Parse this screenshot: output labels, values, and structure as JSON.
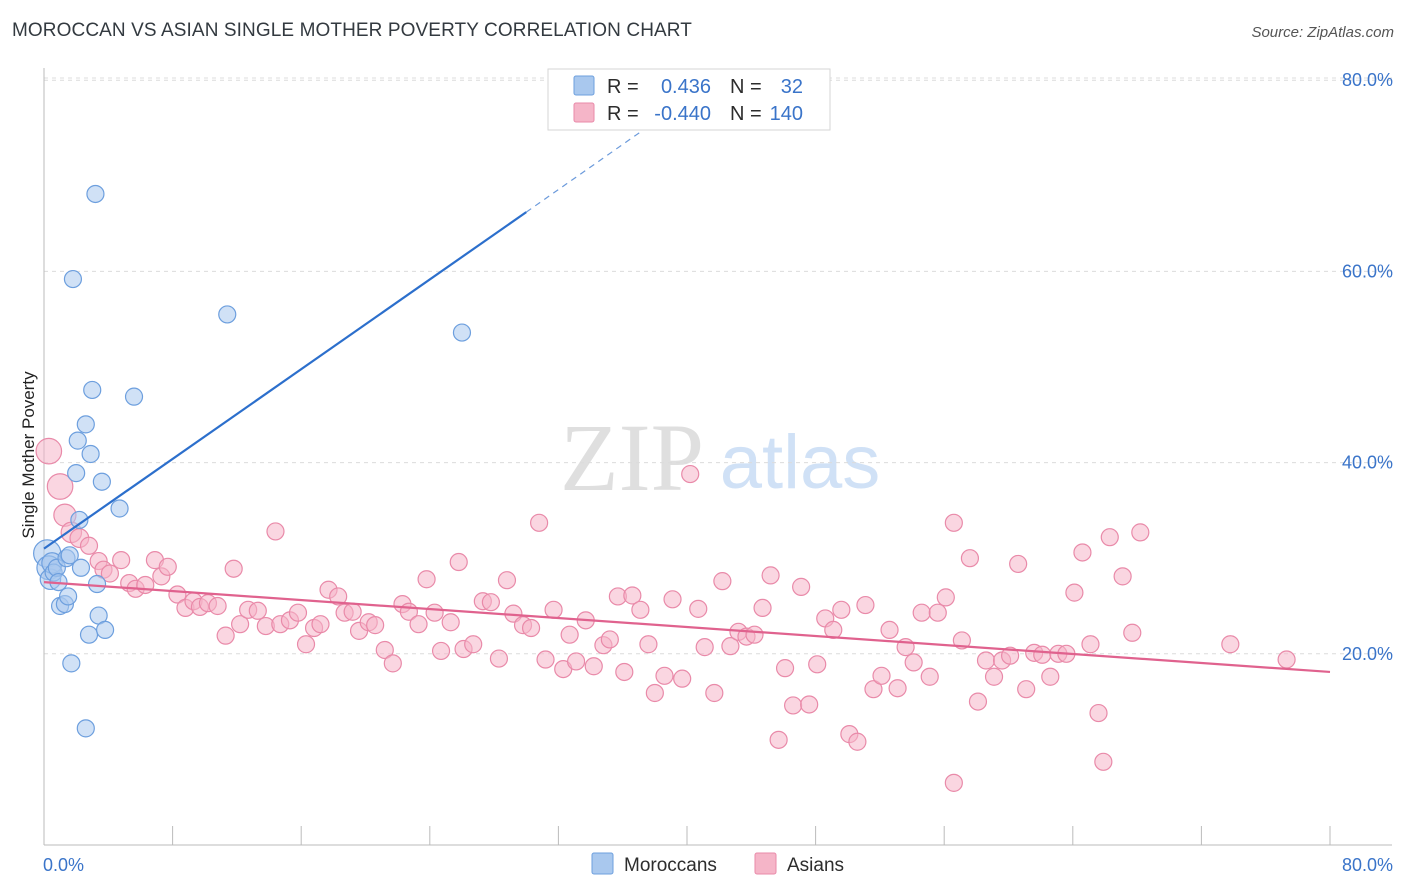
{
  "header": {
    "title": "MOROCCAN VS ASIAN SINGLE MOTHER POVERTY CORRELATION CHART",
    "source": "Source: ZipAtlas.com"
  },
  "watermark": {
    "zip": "ZIP",
    "atlas": "atlas"
  },
  "stats_box": {
    "rows": [
      {
        "r_label": "R =",
        "r_value": "0.436",
        "n_label": "N =",
        "n_value": "32",
        "color": "#a9c8ee"
      },
      {
        "r_label": "R =",
        "r_value": "-0.440",
        "n_label": "N =",
        "n_value": "140",
        "color": "#f5b5c8"
      }
    ]
  },
  "colors": {
    "moroccans_fill": "#a9c8ee",
    "moroccans_stroke": "#6d9fde",
    "moroccans_line": "#2c6fcc",
    "asians_fill": "#f5b5c8",
    "asians_stroke": "#e98aa9",
    "asians_line": "#e0628e",
    "tick_text": "#3a74c9",
    "grid": "#dcdcdc"
  },
  "chart_data": {
    "type": "scatter",
    "title": "MOROCCAN VS ASIAN SINGLE MOTHER POVERTY CORRELATION CHART",
    "xlabel": "",
    "ylabel": "Single Mother Poverty",
    "xlim": [
      0,
      80
    ],
    "ylim": [
      0,
      80
    ],
    "x_tick_labels": [
      {
        "value": 0,
        "label": "0.0%"
      },
      {
        "value": 80,
        "label": "80.0%"
      }
    ],
    "y_tick_labels": [
      {
        "value": 20,
        "label": "20.0%"
      },
      {
        "value": 40,
        "label": "40.0%"
      },
      {
        "value": 60,
        "label": "60.0%"
      },
      {
        "value": 80,
        "label": "80.0%"
      }
    ],
    "legend": [
      "Moroccans",
      "Asians"
    ],
    "legend_position": "bottom-center",
    "series": [
      {
        "name": "Moroccans",
        "r": 0.436,
        "n": 32,
        "trend": {
          "x0": 0,
          "y0": 31.0,
          "x1": 30,
          "y1": 66.2,
          "dash_to_x": 40,
          "dash_to_y": 78.0
        },
        "points": [
          [
            0.2,
            30.5,
            1.6
          ],
          [
            0.3,
            29.0,
            1.4
          ],
          [
            0.4,
            27.8,
            1.2
          ],
          [
            0.5,
            29.5,
            1.2
          ],
          [
            0.6,
            28.5,
            1.0
          ],
          [
            0.8,
            29.0,
            1.0
          ],
          [
            0.9,
            27.5,
            1.0
          ],
          [
            1.0,
            25.0,
            1.0
          ],
          [
            1.3,
            25.2,
            1.0
          ],
          [
            1.4,
            30.0,
            1.0
          ],
          [
            1.5,
            26.0,
            1.0
          ],
          [
            1.6,
            30.3,
            1.0
          ],
          [
            1.7,
            19.0,
            1.0
          ],
          [
            1.8,
            59.2,
            1.0
          ],
          [
            2.0,
            38.9,
            1.0
          ],
          [
            2.1,
            42.3,
            1.0
          ],
          [
            2.2,
            34.0,
            1.0
          ],
          [
            2.3,
            29.0,
            1.0
          ],
          [
            2.6,
            44.0,
            1.0
          ],
          [
            2.6,
            12.2,
            1.0
          ],
          [
            2.8,
            22.0,
            1.0
          ],
          [
            2.9,
            40.9,
            1.0
          ],
          [
            3.0,
            47.6,
            1.0
          ],
          [
            3.2,
            68.1,
            1.0
          ],
          [
            3.3,
            27.3,
            1.0
          ],
          [
            3.4,
            24.0,
            1.0
          ],
          [
            3.6,
            38.0,
            1.0
          ],
          [
            3.8,
            22.5,
            1.0
          ],
          [
            4.7,
            35.2,
            1.0
          ],
          [
            5.6,
            46.9,
            1.0
          ],
          [
            11.4,
            55.5,
            1.0
          ],
          [
            26.0,
            53.6,
            1.0
          ]
        ]
      },
      {
        "name": "Asians",
        "r": -0.44,
        "n": 140,
        "trend": {
          "x0": 0,
          "y0": 27.5,
          "x1": 80,
          "y1": 18.1
        },
        "points": [
          [
            0.3,
            41.2,
            1.5
          ],
          [
            1.0,
            37.5,
            1.5
          ],
          [
            1.3,
            34.5,
            1.3
          ],
          [
            1.7,
            32.7,
            1.2
          ],
          [
            2.2,
            32.1,
            1.1
          ],
          [
            2.8,
            31.3,
            1.0
          ],
          [
            3.4,
            29.7,
            1.0
          ],
          [
            3.7,
            28.8,
            1.0
          ],
          [
            4.1,
            28.4,
            1.0
          ],
          [
            4.8,
            29.8,
            1.0
          ],
          [
            5.3,
            27.4,
            1.0
          ],
          [
            5.7,
            26.8,
            1.0
          ],
          [
            6.3,
            27.2,
            1.0
          ],
          [
            6.9,
            29.8,
            1.0
          ],
          [
            7.3,
            28.1,
            1.0
          ],
          [
            7.7,
            29.1,
            1.0
          ],
          [
            8.3,
            26.2,
            1.0
          ],
          [
            8.8,
            24.8,
            1.0
          ],
          [
            9.3,
            25.5,
            1.0
          ],
          [
            9.7,
            24.9,
            1.0
          ],
          [
            10.2,
            25.3,
            1.0
          ],
          [
            10.8,
            25.0,
            1.0
          ],
          [
            11.3,
            21.9,
            1.0
          ],
          [
            11.8,
            28.9,
            1.0
          ],
          [
            12.2,
            23.1,
            1.0
          ],
          [
            12.7,
            24.6,
            1.0
          ],
          [
            13.3,
            24.5,
            1.0
          ],
          [
            13.8,
            22.9,
            1.0
          ],
          [
            14.4,
            32.8,
            1.0
          ],
          [
            14.7,
            23.1,
            1.0
          ],
          [
            15.3,
            23.5,
            1.0
          ],
          [
            15.8,
            24.3,
            1.0
          ],
          [
            16.3,
            21.0,
            1.0
          ],
          [
            16.8,
            22.7,
            1.0
          ],
          [
            17.2,
            23.1,
            1.0
          ],
          [
            17.7,
            26.7,
            1.0
          ],
          [
            18.3,
            26.0,
            1.0
          ],
          [
            18.7,
            24.3,
            1.0
          ],
          [
            19.2,
            24.4,
            1.0
          ],
          [
            19.6,
            22.4,
            1.0
          ],
          [
            20.2,
            23.3,
            1.0
          ],
          [
            20.6,
            23.0,
            1.0
          ],
          [
            21.2,
            20.4,
            1.0
          ],
          [
            21.7,
            19.0,
            1.0
          ],
          [
            22.3,
            25.2,
            1.0
          ],
          [
            22.7,
            24.4,
            1.0
          ],
          [
            23.3,
            23.1,
            1.0
          ],
          [
            23.8,
            27.8,
            1.0
          ],
          [
            24.3,
            24.3,
            1.0
          ],
          [
            24.7,
            20.3,
            1.0
          ],
          [
            25.3,
            23.3,
            1.0
          ],
          [
            25.8,
            29.6,
            1.0
          ],
          [
            26.1,
            20.5,
            1.0
          ],
          [
            26.7,
            21.0,
            1.0
          ],
          [
            27.3,
            25.5,
            1.0
          ],
          [
            27.8,
            25.4,
            1.0
          ],
          [
            28.3,
            19.5,
            1.0
          ],
          [
            28.8,
            27.7,
            1.0
          ],
          [
            29.2,
            24.2,
            1.0
          ],
          [
            29.8,
            23.0,
            1.0
          ],
          [
            30.3,
            22.7,
            1.0
          ],
          [
            30.8,
            33.7,
            1.0
          ],
          [
            31.2,
            19.4,
            1.0
          ],
          [
            31.7,
            24.6,
            1.0
          ],
          [
            32.3,
            18.4,
            1.0
          ],
          [
            32.7,
            22.0,
            1.0
          ],
          [
            33.1,
            19.2,
            1.0
          ],
          [
            33.7,
            23.5,
            1.0
          ],
          [
            34.2,
            18.7,
            1.0
          ],
          [
            34.8,
            20.9,
            1.0
          ],
          [
            35.2,
            21.5,
            1.0
          ],
          [
            35.7,
            26.0,
            1.0
          ],
          [
            36.1,
            18.1,
            1.0
          ],
          [
            36.6,
            26.1,
            1.0
          ],
          [
            37.1,
            24.6,
            1.0
          ],
          [
            37.6,
            21.0,
            1.0
          ],
          [
            38.0,
            15.9,
            1.0
          ],
          [
            38.6,
            17.7,
            1.0
          ],
          [
            39.1,
            25.7,
            1.0
          ],
          [
            39.7,
            17.4,
            1.0
          ],
          [
            40.2,
            38.8,
            1.0
          ],
          [
            40.7,
            24.7,
            1.0
          ],
          [
            41.1,
            20.7,
            1.0
          ],
          [
            41.7,
            15.9,
            1.0
          ],
          [
            42.2,
            27.6,
            1.0
          ],
          [
            42.7,
            20.8,
            1.0
          ],
          [
            43.2,
            22.3,
            1.0
          ],
          [
            43.7,
            21.8,
            1.0
          ],
          [
            44.2,
            22.0,
            1.0
          ],
          [
            44.7,
            24.8,
            1.0
          ],
          [
            45.2,
            28.2,
            1.0
          ],
          [
            45.7,
            11.0,
            1.0
          ],
          [
            46.1,
            18.5,
            1.0
          ],
          [
            46.6,
            14.6,
            1.0
          ],
          [
            47.1,
            27.0,
            1.0
          ],
          [
            47.6,
            14.7,
            1.0
          ],
          [
            48.1,
            18.9,
            1.0
          ],
          [
            48.6,
            23.7,
            1.0
          ],
          [
            49.1,
            22.5,
            1.0
          ],
          [
            49.6,
            24.6,
            1.0
          ],
          [
            50.1,
            11.6,
            1.0
          ],
          [
            50.6,
            10.8,
            1.0
          ],
          [
            51.1,
            25.1,
            1.0
          ],
          [
            51.6,
            16.3,
            1.0
          ],
          [
            52.1,
            17.7,
            1.0
          ],
          [
            52.6,
            22.5,
            1.0
          ],
          [
            53.1,
            16.4,
            1.0
          ],
          [
            53.6,
            20.7,
            1.0
          ],
          [
            54.1,
            19.1,
            1.0
          ],
          [
            54.6,
            24.3,
            1.0
          ],
          [
            55.1,
            17.6,
            1.0
          ],
          [
            55.6,
            24.3,
            1.0
          ],
          [
            56.1,
            25.9,
            1.0
          ],
          [
            56.6,
            33.7,
            1.0
          ],
          [
            57.1,
            21.4,
            1.0
          ],
          [
            57.6,
            30.0,
            1.0
          ],
          [
            58.1,
            15.0,
            1.0
          ],
          [
            58.6,
            19.3,
            1.0
          ],
          [
            59.1,
            17.6,
            1.0
          ],
          [
            59.6,
            19.3,
            1.0
          ],
          [
            60.1,
            19.8,
            1.0
          ],
          [
            60.6,
            29.4,
            1.0
          ],
          [
            61.1,
            16.3,
            1.0
          ],
          [
            61.6,
            20.1,
            1.0
          ],
          [
            62.1,
            19.9,
            1.0
          ],
          [
            62.6,
            17.6,
            1.0
          ],
          [
            63.1,
            20.0,
            1.0
          ],
          [
            56.6,
            6.5,
            1.0
          ],
          [
            63.6,
            20.0,
            1.0
          ],
          [
            64.1,
            26.4,
            1.0
          ],
          [
            64.6,
            30.6,
            1.0
          ],
          [
            65.1,
            21.0,
            1.0
          ],
          [
            65.6,
            13.8,
            1.0
          ],
          [
            65.9,
            8.7,
            1.0
          ],
          [
            66.3,
            32.2,
            1.0
          ],
          [
            67.1,
            28.1,
            1.0
          ],
          [
            68.2,
            32.7,
            1.0
          ],
          [
            67.7,
            22.2,
            1.0
          ],
          [
            73.8,
            21.0,
            1.0
          ],
          [
            77.3,
            19.4,
            1.0
          ]
        ]
      }
    ]
  },
  "legend_labels": {
    "moroccans": "Moroccans",
    "asians": "Asians"
  }
}
